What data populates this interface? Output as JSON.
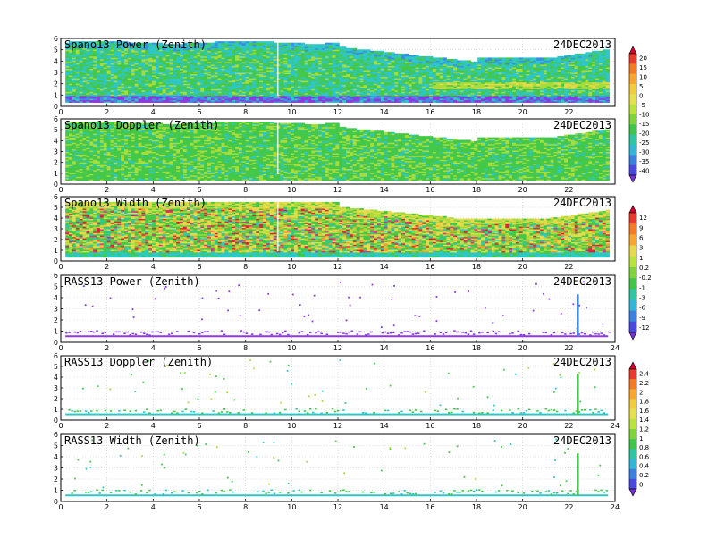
{
  "chart_data": [
    {
      "type": "heatmap",
      "title": "Spano13 Power (Zenith)",
      "date": "24DEC2013",
      "xlim": [
        0,
        24
      ],
      "ylim": [
        0,
        6
      ],
      "x_ticks": [
        "0",
        "2",
        "4",
        "6",
        "8",
        "10",
        "12",
        "14",
        "16",
        "18",
        "20",
        "22"
      ],
      "y_ticks": [
        "0",
        "1",
        "2",
        "3",
        "4",
        "5",
        "6"
      ],
      "grid": true,
      "colorbar_group": 0
    },
    {
      "type": "heatmap",
      "title": "Spano13 Doppler (Zenith)",
      "date": "24DEC2013",
      "xlim": [
        0,
        24
      ],
      "ylim": [
        0,
        6
      ],
      "x_ticks": [
        "0",
        "2",
        "4",
        "6",
        "8",
        "10",
        "12",
        "14",
        "16",
        "18",
        "20",
        "22"
      ],
      "y_ticks": [
        "0",
        "1",
        "2",
        "3",
        "4",
        "5",
        "6"
      ],
      "grid": true,
      "colorbar_group": 0
    },
    {
      "type": "heatmap",
      "title": "Spano13 Width (Zenith)",
      "date": "24DEC2013",
      "xlim": [
        0,
        24
      ],
      "ylim": [
        0,
        6
      ],
      "x_ticks": [
        "0",
        "2",
        "4",
        "6",
        "8",
        "10",
        "12",
        "14",
        "16",
        "18",
        "20",
        "22"
      ],
      "y_ticks": [
        "0",
        "1",
        "2",
        "3",
        "4",
        "5",
        "6"
      ],
      "grid": true,
      "colorbar_group": 1
    },
    {
      "type": "heatmap",
      "title": "RASS13 Power (Zenith)",
      "date": "24DEC2013",
      "xlim": [
        0,
        24
      ],
      "ylim": [
        0,
        6
      ],
      "x_ticks": [
        "0",
        "2",
        "4",
        "6",
        "8",
        "10",
        "12",
        "14",
        "16",
        "18",
        "20",
        "22",
        "24"
      ],
      "y_ticks": [
        "0",
        "1",
        "2",
        "3",
        "4",
        "5",
        "6"
      ],
      "grid": true,
      "colorbar_group": 2
    },
    {
      "type": "heatmap",
      "title": "RASS13 Doppler (Zenith)",
      "date": "24DEC2013",
      "xlim": [
        0,
        24
      ],
      "ylim": [
        0,
        6
      ],
      "x_ticks": [
        "0",
        "2",
        "4",
        "6",
        "8",
        "10",
        "12",
        "14",
        "16",
        "18",
        "20",
        "22",
        "24"
      ],
      "y_ticks": [
        "0",
        "1",
        "2",
        "3",
        "4",
        "5",
        "6"
      ],
      "grid": true,
      "colorbar_group": 3
    },
    {
      "type": "heatmap",
      "title": "RASS13 Width (Zenith)",
      "date": "24DEC2013",
      "xlim": [
        0,
        24
      ],
      "ylim": [
        0,
        6
      ],
      "x_ticks": [
        "0",
        "2",
        "4",
        "6",
        "8",
        "10",
        "12",
        "14",
        "16",
        "18",
        "20",
        "22",
        "24"
      ],
      "y_ticks": [
        "0",
        "1",
        "2",
        "3",
        "4",
        "5",
        "6"
      ],
      "grid": true,
      "colorbar_group": 3
    }
  ],
  "colorbars": [
    {
      "labels": [
        "20",
        "15",
        "10",
        "5",
        "0",
        "-5",
        "-10",
        "-15",
        "-20",
        "-25",
        "-30",
        "-35",
        "-40"
      ],
      "colors": [
        "#d6002f",
        "#ea3a2e",
        "#f47a24",
        "#f8a62e",
        "#f2cc3c",
        "#e6e14a",
        "#b9e23a",
        "#7ed43a",
        "#3fc64a",
        "#2ec6a0",
        "#31b6d8",
        "#3b7fe0",
        "#4a48e0",
        "#7a2fe0"
      ]
    },
    {
      "labels": [
        "12",
        "9",
        "6",
        "3",
        "1",
        "0.2",
        "-0.2",
        "-1",
        "-3",
        "-6",
        "-9",
        "-12"
      ],
      "colors": [
        "#d6002f",
        "#ea3a2e",
        "#f47a24",
        "#f8a62e",
        "#e6d94a",
        "#b9e23a",
        "#7ed43a",
        "#3fc64a",
        "#2ec6a0",
        "#31b6d8",
        "#3b7fe0",
        "#4a48e0",
        "#7a2fe0"
      ]
    },
    {
      "labels": [
        "2.4",
        "2.2",
        "2",
        "1.8",
        "1.6",
        "1.4",
        "1.2",
        "1",
        "0.8",
        "0.6",
        "0.4",
        "0.2",
        "0"
      ],
      "colors": [
        "#d6002f",
        "#ea3a2e",
        "#f47a24",
        "#f8a62e",
        "#f2cc3c",
        "#e6e14a",
        "#b9e23a",
        "#7ed43a",
        "#3fc64a",
        "#2ec6a0",
        "#31b6d8",
        "#3b7fe0",
        "#4a48e0",
        "#7a2fe0"
      ]
    }
  ],
  "palette": {
    "purple": "#8a3ae0",
    "blue": "#3a8ee0",
    "cyan": "#2ec6c6",
    "green": "#44c84a",
    "lime": "#a8dc3a",
    "yellow": "#e6d94a",
    "orange": "#f4a02e",
    "red": "#e0243a",
    "magenta": "#e0308a"
  }
}
